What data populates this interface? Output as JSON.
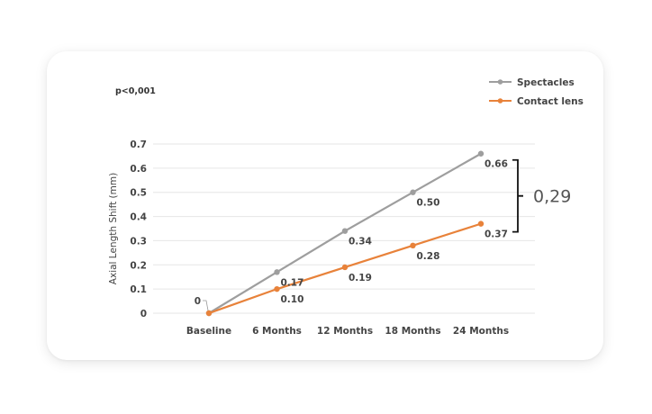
{
  "chart_data": {
    "type": "line",
    "annotation_top_left": "p<0,001",
    "ylabel": "Axial Length Shift (mm)",
    "xlabel": "",
    "categories": [
      "Baseline",
      "6 Months",
      "12 Months",
      "18 Months",
      "24 Months"
    ],
    "ylim": [
      0,
      0.7
    ],
    "yticks": [
      {
        "value": 0,
        "label": "0"
      },
      {
        "value": 0.1,
        "label": "0.1"
      },
      {
        "value": 0.2,
        "label": "0.2"
      },
      {
        "value": 0.3,
        "label": "0.3"
      },
      {
        "value": 0.4,
        "label": "0.4"
      },
      {
        "value": 0.5,
        "label": "0.5"
      },
      {
        "value": 0.6,
        "label": "0.6"
      },
      {
        "value": 0.7,
        "label": "0.7"
      }
    ],
    "grid": true,
    "legend_position": "top-right",
    "series": [
      {
        "name": "Spectacles",
        "color": "#9e9e9e",
        "values": [
          0,
          0.17,
          0.34,
          0.5,
          0.66
        ],
        "labels": [
          "",
          "0.17",
          "0.34",
          "0.50",
          "0.66"
        ]
      },
      {
        "name": "Contact lens",
        "color": "#e8823a",
        "values": [
          0,
          0.1,
          0.19,
          0.28,
          0.37
        ],
        "labels": [
          "",
          "0.10",
          "0.19",
          "0.28",
          "0.37"
        ]
      }
    ],
    "baseline_label": "0",
    "difference_label": "0,29"
  }
}
